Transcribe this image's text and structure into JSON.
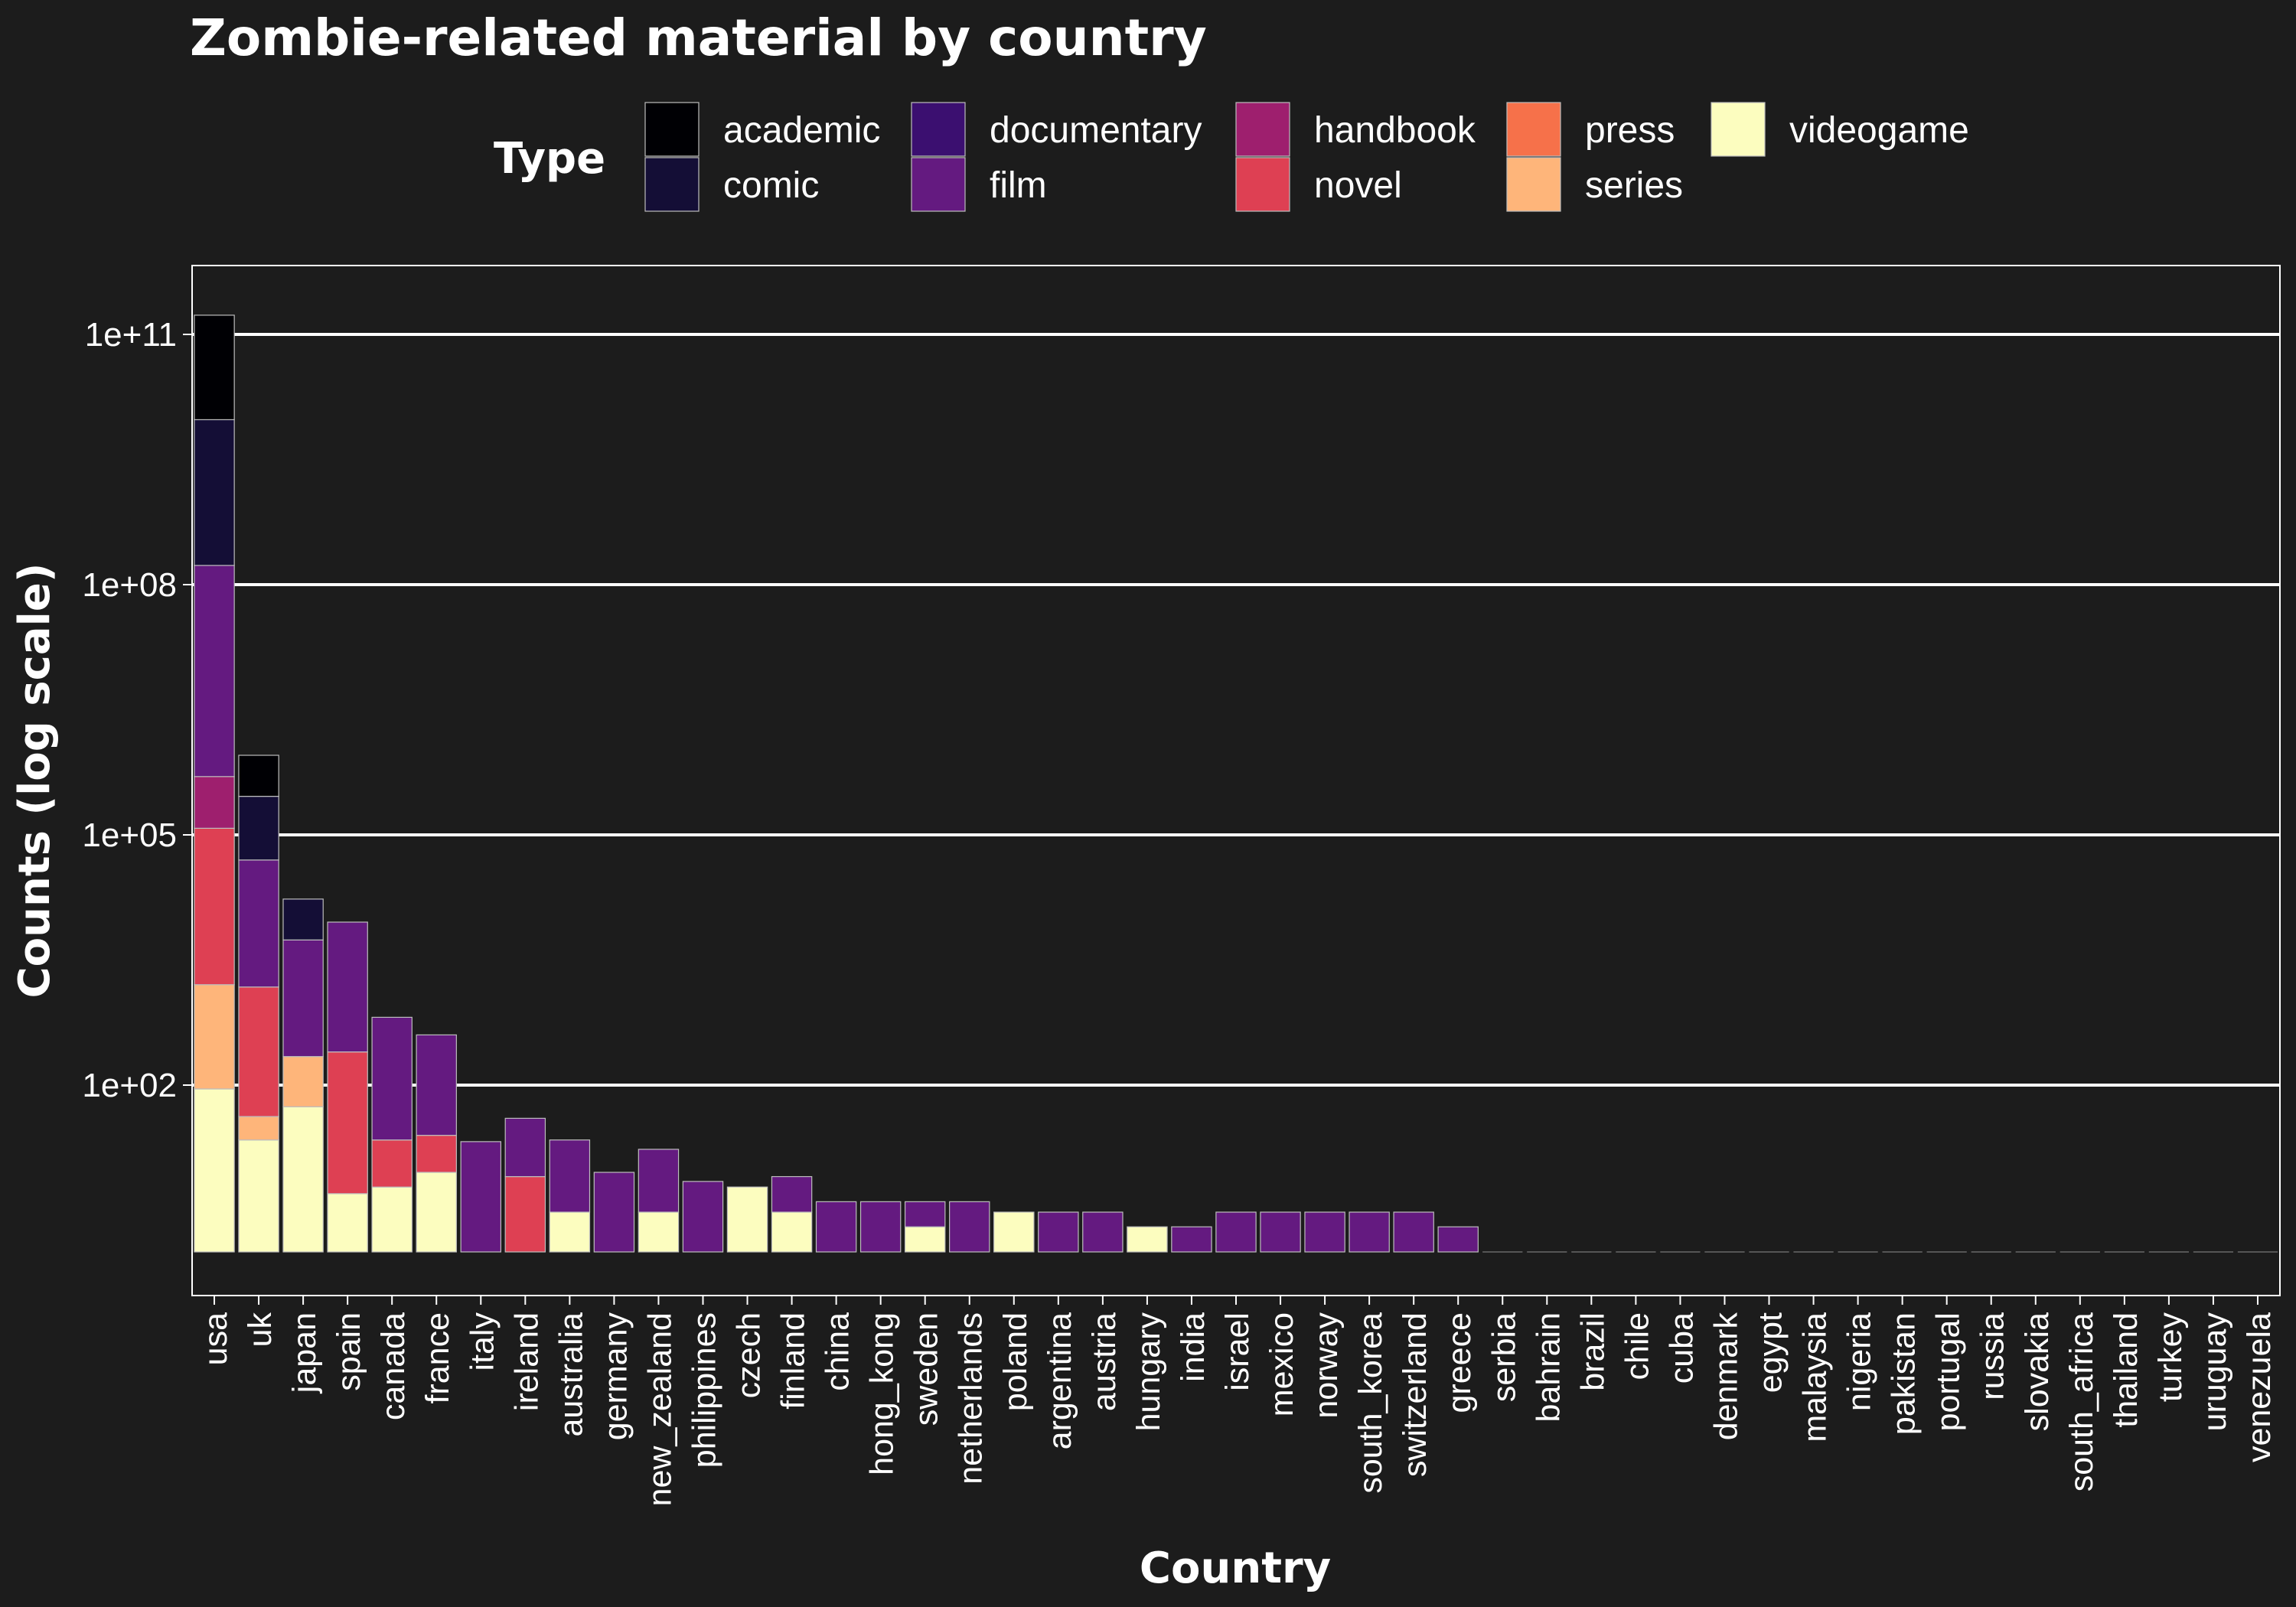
{
  "chart_data": {
    "type": "bar",
    "stacked": true,
    "title": "Zombie-related material by country",
    "xlabel": "Country",
    "ylabel": "Counts (log scale)",
    "y_scale": "log",
    "ylim": [
      1,
      200000000000
    ],
    "yticks": [
      100,
      100000,
      100000000,
      100000000000
    ],
    "ytick_labels": [
      "1e+02",
      "1e+05",
      "1e+08",
      "1e+11"
    ],
    "grid": true,
    "legend": {
      "title": "Type",
      "placement": "top",
      "items": [
        {
          "label": "academic",
          "color": "#000004"
        },
        {
          "label": "comic",
          "color": "#140e36"
        },
        {
          "label": "documentary",
          "color": "#3b0f70"
        },
        {
          "label": "film",
          "color": "#641a80"
        },
        {
          "label": "handbook",
          "color": "#9e1f6e"
        },
        {
          "label": "novel",
          "color": "#de4053"
        },
        {
          "label": "press",
          "color": "#f6714a"
        },
        {
          "label": "series",
          "color": "#feb57a"
        },
        {
          "label": "videogame",
          "color": "#fcfdbf"
        }
      ]
    },
    "categories": [
      "usa",
      "uk",
      "japan",
      "spain",
      "canada",
      "france",
      "italy",
      "ireland",
      "australia",
      "germany",
      "new_zealand",
      "philippines",
      "czech",
      "finland",
      "china",
      "hong_kong",
      "sweden",
      "netherlands",
      "poland",
      "argentina",
      "austria",
      "hungary",
      "india",
      "israel",
      "mexico",
      "norway",
      "south_korea",
      "switzerland",
      "greece",
      "serbia",
      "bahrain",
      "brazil",
      "chile",
      "cuba",
      "denmark",
      "egypt",
      "malaysia",
      "nigeria",
      "pakistan",
      "portugal",
      "russia",
      "slovakia",
      "south_africa",
      "thailand",
      "turkey",
      "uruguay",
      "venezuela"
    ],
    "segments": [
      [
        {
          "type": "videogame",
          "from": 1,
          "to": 90
        },
        {
          "type": "series",
          "from": 90,
          "to": 1600
        },
        {
          "type": "novel",
          "from": 1600,
          "to": 120000
        },
        {
          "type": "handbook",
          "from": 120000,
          "to": 500000
        },
        {
          "type": "film",
          "from": 500000,
          "to": 170000000
        },
        {
          "type": "comic",
          "from": 170000000,
          "to": 9500000000
        },
        {
          "type": "academic",
          "from": 9500000000,
          "to": 170000000000
        }
      ],
      [
        {
          "type": "videogame",
          "from": 1,
          "to": 22
        },
        {
          "type": "series",
          "from": 22,
          "to": 42
        },
        {
          "type": "novel",
          "from": 42,
          "to": 1500
        },
        {
          "type": "film",
          "from": 1500,
          "to": 50000
        },
        {
          "type": "comic",
          "from": 50000,
          "to": 290000
        },
        {
          "type": "academic",
          "from": 290000,
          "to": 900000
        }
      ],
      [
        {
          "type": "videogame",
          "from": 1,
          "to": 55
        },
        {
          "type": "series",
          "from": 55,
          "to": 220
        },
        {
          "type": "film",
          "from": 220,
          "to": 5500
        },
        {
          "type": "comic",
          "from": 5500,
          "to": 17000
        }
      ],
      [
        {
          "type": "videogame",
          "from": 1,
          "to": 5
        },
        {
          "type": "novel",
          "from": 5,
          "to": 250
        },
        {
          "type": "film",
          "from": 250,
          "to": 9000
        }
      ],
      [
        {
          "type": "videogame",
          "from": 1,
          "to": 6
        },
        {
          "type": "novel",
          "from": 6,
          "to": 22
        },
        {
          "type": "film",
          "from": 22,
          "to": 650
        }
      ],
      [
        {
          "type": "videogame",
          "from": 1,
          "to": 9
        },
        {
          "type": "novel",
          "from": 9,
          "to": 25
        },
        {
          "type": "film",
          "from": 25,
          "to": 400
        }
      ],
      [
        {
          "type": "film",
          "from": 1,
          "to": 21
        }
      ],
      [
        {
          "type": "novel",
          "from": 1,
          "to": 8
        },
        {
          "type": "film",
          "from": 8,
          "to": 40
        }
      ],
      [
        {
          "type": "videogame",
          "from": 1,
          "to": 3
        },
        {
          "type": "film",
          "from": 3,
          "to": 22
        }
      ],
      [
        {
          "type": "film",
          "from": 1,
          "to": 9
        }
      ],
      [
        {
          "type": "videogame",
          "from": 1,
          "to": 3
        },
        {
          "type": "film",
          "from": 3,
          "to": 17
        }
      ],
      [
        {
          "type": "film",
          "from": 1,
          "to": 7
        }
      ],
      [
        {
          "type": "videogame",
          "from": 1,
          "to": 6
        }
      ],
      [
        {
          "type": "videogame",
          "from": 1,
          "to": 3
        },
        {
          "type": "film",
          "from": 3,
          "to": 8
        }
      ],
      [
        {
          "type": "film",
          "from": 1,
          "to": 4
        }
      ],
      [
        {
          "type": "film",
          "from": 1,
          "to": 4
        }
      ],
      [
        {
          "type": "videogame",
          "from": 1,
          "to": 2
        },
        {
          "type": "film",
          "from": 2,
          "to": 4
        }
      ],
      [
        {
          "type": "film",
          "from": 1,
          "to": 4
        }
      ],
      [
        {
          "type": "videogame",
          "from": 1,
          "to": 3
        }
      ],
      [
        {
          "type": "film",
          "from": 1,
          "to": 3
        }
      ],
      [
        {
          "type": "film",
          "from": 1,
          "to": 3
        }
      ],
      [
        {
          "type": "videogame",
          "from": 1,
          "to": 2
        }
      ],
      [
        {
          "type": "film",
          "from": 1,
          "to": 2
        }
      ],
      [
        {
          "type": "film",
          "from": 1,
          "to": 3
        }
      ],
      [
        {
          "type": "film",
          "from": 1,
          "to": 3
        }
      ],
      [
        {
          "type": "film",
          "from": 1,
          "to": 3
        }
      ],
      [
        {
          "type": "film",
          "from": 1,
          "to": 3
        }
      ],
      [
        {
          "type": "film",
          "from": 1,
          "to": 3
        }
      ],
      [
        {
          "type": "film",
          "from": 1,
          "to": 2
        }
      ],
      [],
      [],
      [],
      [],
      [],
      [],
      [],
      [],
      [],
      [],
      [],
      [],
      [],
      [],
      [],
      [],
      [],
      []
    ]
  }
}
